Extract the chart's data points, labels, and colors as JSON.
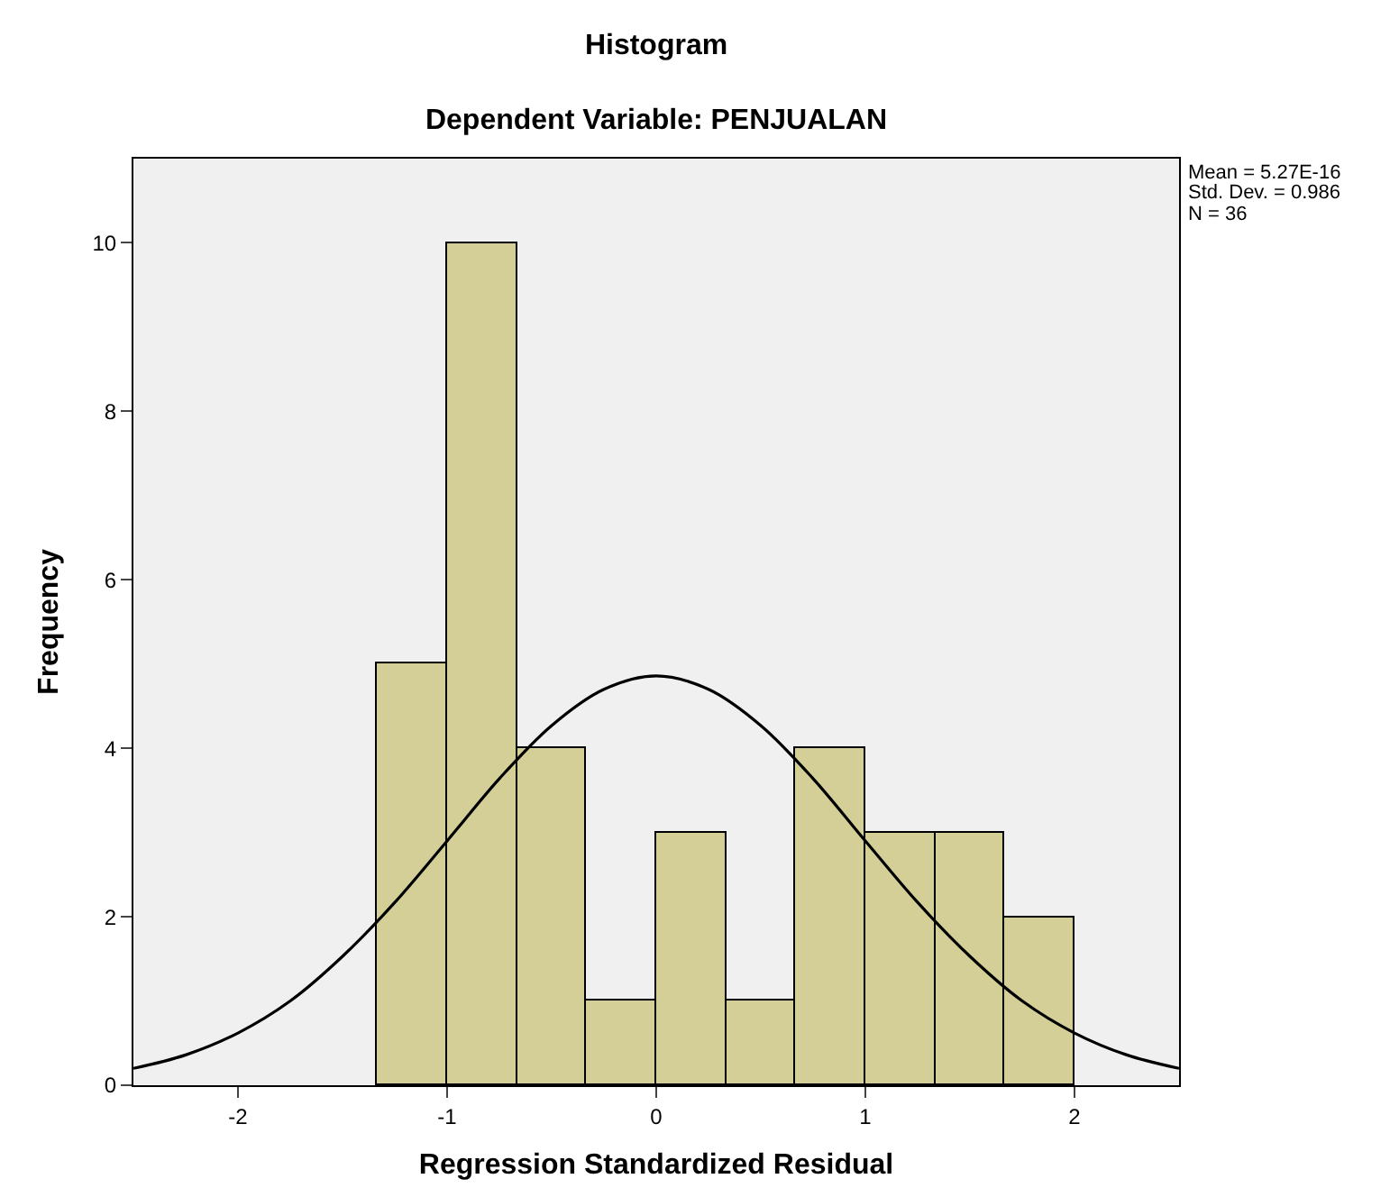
{
  "chart_data": {
    "type": "histogram",
    "title": "Histogram",
    "subtitle": "Dependent Variable: PENJUALAN",
    "xlabel": "Regression Standardized Residual",
    "ylabel": "Frequency",
    "bins": [
      -1.3333,
      -1,
      -0.6667,
      -0.3333,
      0,
      0.3333,
      0.6667,
      1,
      1.3333,
      1.6667,
      2
    ],
    "values": [
      5,
      10,
      4,
      1,
      3,
      1,
      4,
      3,
      3,
      2
    ],
    "color": "#d3cf97",
    "series": [
      {
        "type": "line",
        "color": "#000000",
        "x": [
          -2.5,
          -2.25,
          -2,
          -1.75,
          -1.5,
          -1.25,
          -1,
          -0.75,
          -0.5,
          -0.25,
          0,
          0.25,
          0.5,
          0.75,
          1,
          1.25,
          1.5,
          1.75,
          2,
          2.25,
          2.5
        ],
        "values": [
          0.2,
          0.36,
          0.62,
          1.0,
          1.53,
          2.17,
          2.9,
          3.64,
          4.27,
          4.7,
          4.86,
          4.7,
          4.27,
          3.64,
          2.9,
          2.17,
          1.53,
          1.0,
          0.62,
          0.36,
          0.2
        ]
      }
    ],
    "xlim": [
      -2.5,
      2.5
    ],
    "xticks": [
      -2,
      -1,
      0,
      1,
      2
    ],
    "ylim": [
      0,
      11
    ],
    "yticks": [
      0,
      2,
      4,
      6,
      8,
      10
    ],
    "annotations": [
      "Mean = 5.27E-16",
      "Std. Dev. = 0.986",
      "N = 36"
    ],
    "grid": false
  }
}
